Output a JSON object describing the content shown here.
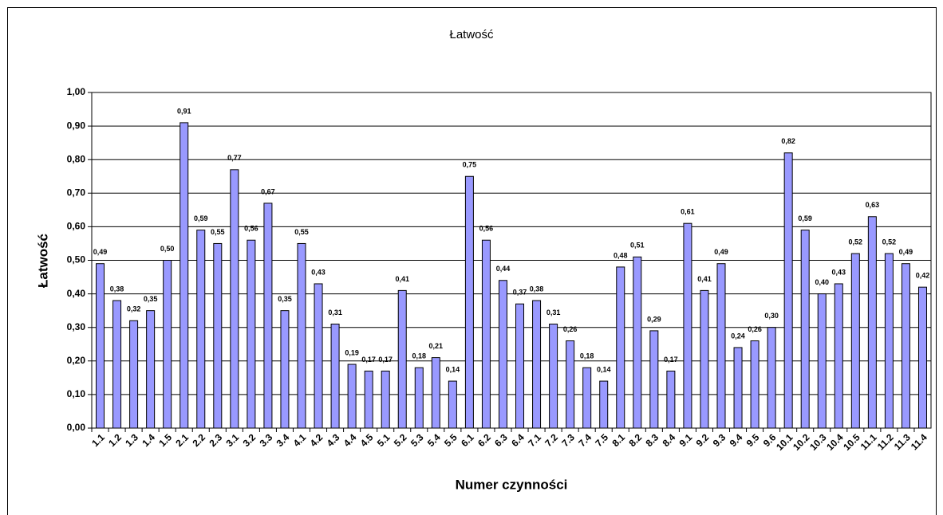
{
  "chart_data": {
    "type": "bar",
    "title": "Łatwość",
    "x_label": "Numer czynności",
    "y_label": "Łatwość",
    "categories": [
      "1.1",
      "1.2",
      "1.3",
      "1.4",
      "1.5",
      "2.1",
      "2.2",
      "2.3",
      "3.1",
      "3.2",
      "3.3",
      "3.4",
      "4.1",
      "4.2",
      "4.3",
      "4.4",
      "4.5",
      "5.1",
      "5.2",
      "5.3",
      "5.4",
      "5.5",
      "6.1",
      "6.2",
      "6.3",
      "6.4",
      "7.1",
      "7.2",
      "7.3",
      "7.4",
      "7.5",
      "8.1",
      "8.2",
      "8.3",
      "8.4",
      "9.1",
      "9.2",
      "9.3",
      "9.4",
      "9.5",
      "9.6",
      "10.1",
      "10.2",
      "10.3",
      "10.4",
      "10.5",
      "11.1",
      "11.2",
      "11.3",
      "11.4"
    ],
    "values": [
      0.49,
      0.38,
      0.32,
      0.35,
      0.5,
      0.91,
      0.59,
      0.55,
      0.77,
      0.56,
      0.67,
      0.35,
      0.55,
      0.43,
      0.31,
      0.19,
      0.17,
      0.17,
      0.41,
      0.18,
      0.21,
      0.14,
      0.75,
      0.56,
      0.44,
      0.37,
      0.38,
      0.31,
      0.26,
      0.18,
      0.14,
      0.48,
      0.51,
      0.29,
      0.17,
      0.61,
      0.41,
      0.49,
      0.24,
      0.26,
      0.3,
      0.82,
      0.59,
      0.4,
      0.43,
      0.52,
      0.63,
      0.52,
      0.49,
      0.42
    ],
    "value_labels": [
      "0,49",
      "0,38",
      "0,32",
      "0,35",
      "0,50",
      "0,91",
      "0,59",
      "0,55",
      "0,77",
      "0,56",
      "0,67",
      "0,35",
      "0,55",
      "0,43",
      "0,31",
      "0,19",
      "0,17",
      "0,17",
      "0,41",
      "0,18",
      "0,21",
      "0,14",
      "0,75",
      "0,56",
      "0,44",
      "0,37",
      "0,38",
      "0,31",
      "0,26",
      "0,18",
      "0,14",
      "0,48",
      "0,51",
      "0,29",
      "0,17",
      "0,61",
      "0,41",
      "0,49",
      "0,24",
      "0,26",
      "0,30",
      "0,82",
      "0,59",
      "0,40",
      "0,43",
      "0,52",
      "0,63",
      "0,52",
      "0,49",
      "0,42"
    ],
    "color": "#9999ff",
    "ylim": [
      0,
      1
    ],
    "yticks": [
      {
        "value": 0,
        "label": "0,00"
      },
      {
        "value": 0.1,
        "label": "0,10"
      },
      {
        "value": 0.2,
        "label": "0,20"
      },
      {
        "value": 0.3,
        "label": "0,30"
      },
      {
        "value": 0.4,
        "label": "0,40"
      },
      {
        "value": 0.5,
        "label": "0,50"
      },
      {
        "value": 0.6,
        "label": "0,60"
      },
      {
        "value": 0.7,
        "label": "0,70"
      },
      {
        "value": 0.8,
        "label": "0,80"
      },
      {
        "value": 0.9,
        "label": "0,90"
      },
      {
        "value": 1,
        "label": "1,00"
      }
    ],
    "grid": true
  }
}
